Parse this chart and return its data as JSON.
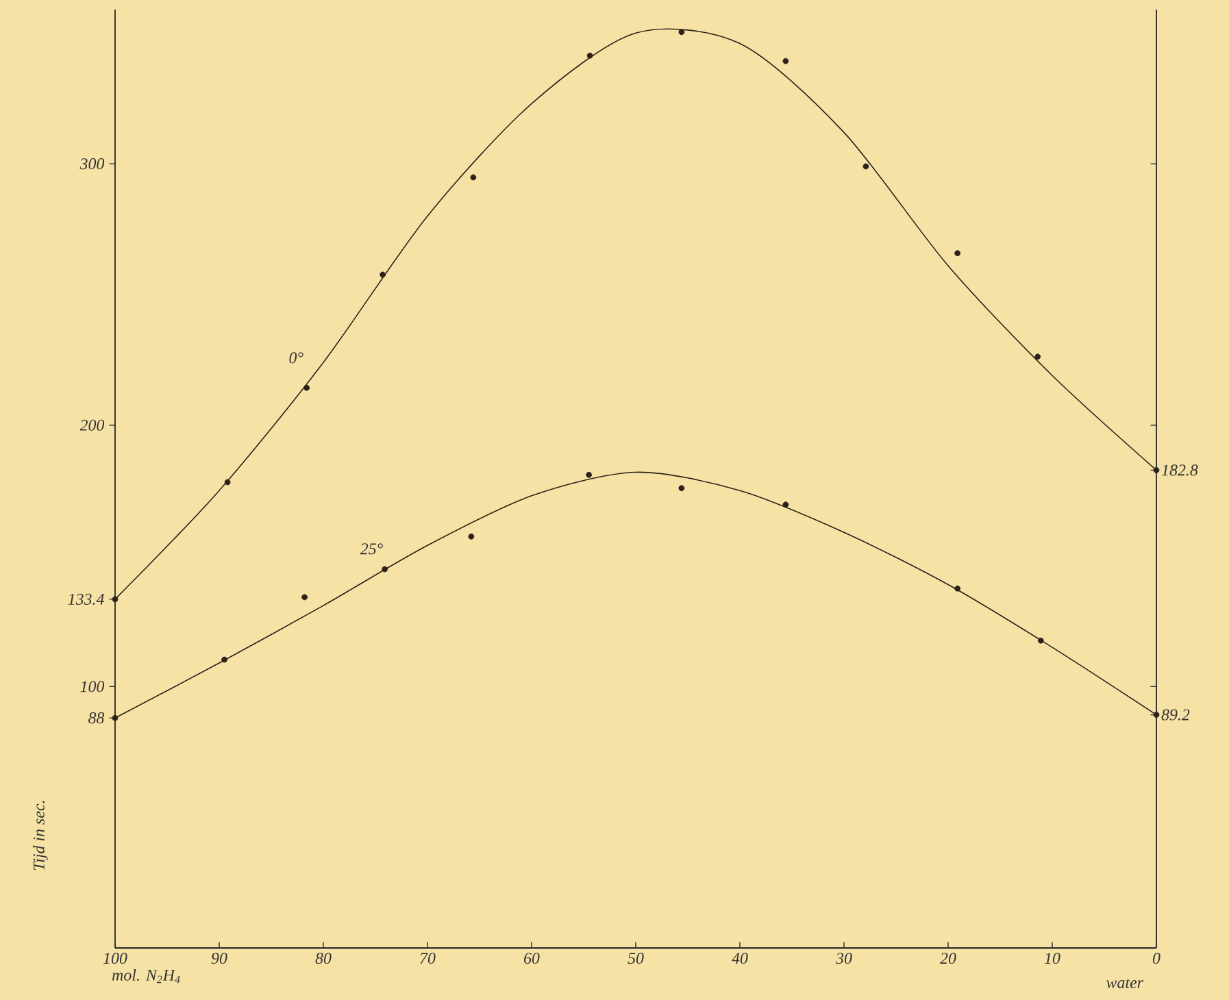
{
  "chart_data": {
    "type": "line",
    "ylabel": "Tijd in sec.",
    "xlim": [
      100,
      0
    ],
    "xticks": [
      100,
      90,
      80,
      70,
      60,
      50,
      40,
      30,
      20,
      10,
      0
    ],
    "ylim": [
      0,
      359
    ],
    "yticks": [
      88,
      100,
      133.4,
      200,
      300
    ],
    "y2lim": [
      0,
      359
    ],
    "y2ticks": [
      89.2,
      {
        "value": 100,
        "label": null
      },
      182.8,
      {
        "value": 200,
        "label": null
      },
      {
        "value": 300,
        "label": null
      }
    ],
    "grid": false,
    "annotations": [
      "mol. N$_{2}$H$_{4}$",
      "water"
    ],
    "series": [
      {
        "name": "0°",
        "color": "#2b2118",
        "x": [
          100,
          90,
          80,
          70,
          60,
          50,
          40,
          30,
          20,
          10,
          0
        ],
        "values": [
          133.4,
          175,
          224,
          280,
          323,
          350,
          346,
          312,
          261,
          219,
          182.8
        ]
      },
      {
        "type": "scatter",
        "color": "#2b2118",
        "x": [
          100,
          89.2,
          81.6,
          74.3,
          65.6,
          54.4,
          45.6,
          35.6,
          27.9,
          19.1,
          11.4,
          0
        ],
        "values": [
          133.4,
          178.2,
          214.3,
          257.6,
          294.8,
          341.4,
          350.4,
          339.3,
          299,
          265.8,
          226.2,
          182.8
        ]
      },
      {
        "name": "25°",
        "color": "#2b2118",
        "x": [
          100,
          90,
          80,
          70,
          60,
          50,
          40,
          30,
          20,
          10,
          0
        ],
        "values": [
          88,
          109,
          131,
          154,
          173,
          182,
          175,
          159,
          139,
          115,
          89.2
        ]
      },
      {
        "type": "scatter",
        "color": "#2b2118",
        "x": [
          100,
          89.5,
          81.8,
          74.1,
          65.8,
          54.5,
          45.6,
          35.6,
          19.1,
          11.1,
          0
        ],
        "values": [
          88,
          110.3,
          134.2,
          144.9,
          157.4,
          181,
          175.9,
          169.6,
          137.5,
          117.6,
          89.2
        ]
      }
    ]
  }
}
